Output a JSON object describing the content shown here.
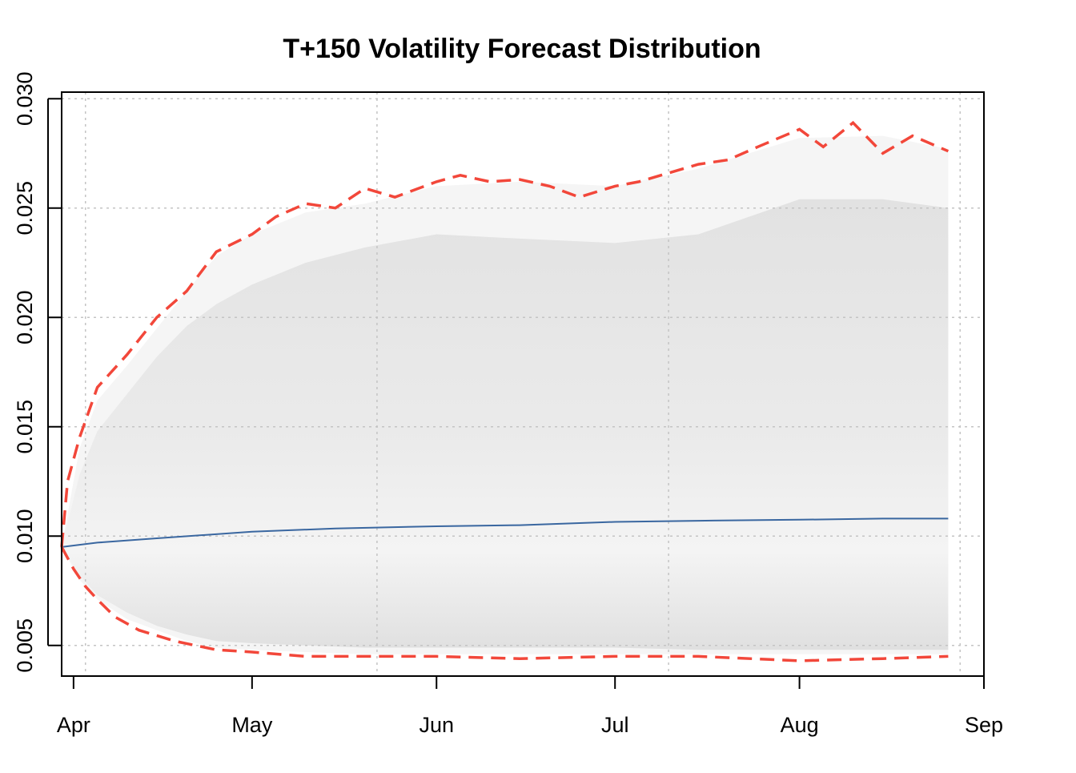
{
  "chart_data": {
    "type": "area",
    "title": "T+150 Volatility Forecast Distribution",
    "xlabel": "",
    "ylabel": "",
    "x_axis": {
      "ticks": [
        "Apr",
        "May",
        "Jun",
        "Jul",
        "Aug",
        "Sep"
      ],
      "tick_dates": [
        "2000-04-01",
        "2000-05-01",
        "2000-06-01",
        "2000-07-01",
        "2000-08-01",
        "2000-09-01"
      ],
      "grid_dates": [
        "2000-04-03",
        "2000-05-22",
        "2000-07-10",
        "2000-08-28"
      ],
      "range": [
        "2000-03-30",
        "2000-09-01"
      ]
    },
    "y_axis": {
      "ticks": [
        "0.005",
        "0.010",
        "0.015",
        "0.020",
        "0.025",
        "0.030"
      ],
      "tick_values": [
        0.005,
        0.01,
        0.015,
        0.02,
        0.025,
        0.03
      ],
      "range": [
        0.0036,
        0.0303
      ]
    },
    "grid": true,
    "series": [
      {
        "kind": "line",
        "color": "#3a67a0",
        "x": [
          "2000-03-30",
          "2000-04-05",
          "2000-04-15",
          "2000-05-01",
          "2000-05-15",
          "2000-06-01",
          "2000-06-15",
          "2000-07-01",
          "2000-07-15",
          "2000-08-01",
          "2000-08-15",
          "2000-08-26"
        ],
        "values": [
          0.0095,
          0.0097,
          0.0099,
          0.0102,
          0.01035,
          0.01045,
          0.0105,
          0.01065,
          0.0107,
          0.01075,
          0.0108,
          0.0108
        ]
      },
      {
        "kind": "dashed-line",
        "color": "#f2473a",
        "x": [
          "2000-03-30",
          "2000-03-31",
          "2000-04-02",
          "2000-04-05",
          "2000-04-10",
          "2000-04-15",
          "2000-04-20",
          "2000-04-25",
          "2000-05-01",
          "2000-05-05",
          "2000-05-10",
          "2000-05-15",
          "2000-05-20",
          "2000-05-25",
          "2000-06-01",
          "2000-06-05",
          "2000-06-10",
          "2000-06-15",
          "2000-06-20",
          "2000-06-25",
          "2000-07-01",
          "2000-07-05",
          "2000-07-10",
          "2000-07-15",
          "2000-07-20",
          "2000-07-25",
          "2000-08-01",
          "2000-08-05",
          "2000-08-10",
          "2000-08-15",
          "2000-08-20",
          "2000-08-26"
        ],
        "values": [
          0.0095,
          0.0125,
          0.0145,
          0.0168,
          0.0183,
          0.02,
          0.0212,
          0.023,
          0.0238,
          0.0246,
          0.0252,
          0.025,
          0.0259,
          0.0255,
          0.0262,
          0.0265,
          0.0262,
          0.0263,
          0.026,
          0.0255,
          0.026,
          0.0262,
          0.0266,
          0.027,
          0.0272,
          0.0278,
          0.0286,
          0.0278,
          0.0289,
          0.0275,
          0.0283,
          0.0276
        ]
      },
      {
        "kind": "dashed-line",
        "color": "#f2473a",
        "x": [
          "2000-03-30",
          "2000-04-01",
          "2000-04-03",
          "2000-04-05",
          "2000-04-08",
          "2000-04-12",
          "2000-04-18",
          "2000-04-25",
          "2000-05-01",
          "2000-05-10",
          "2000-05-20",
          "2000-06-01",
          "2000-06-15",
          "2000-07-01",
          "2000-07-15",
          "2000-08-01",
          "2000-08-15",
          "2000-08-26"
        ],
        "values": [
          0.0095,
          0.0085,
          0.0077,
          0.0071,
          0.0063,
          0.0057,
          0.0052,
          0.0048,
          0.0047,
          0.0045,
          0.0045,
          0.0045,
          0.0044,
          0.0045,
          0.0045,
          0.0043,
          0.0044,
          0.0045
        ]
      }
    ],
    "bands": [
      {
        "kind": "band",
        "color": "#f5f5f5",
        "x": [
          "2000-03-30",
          "2000-04-02",
          "2000-04-05",
          "2000-04-10",
          "2000-04-15",
          "2000-04-20",
          "2000-04-25",
          "2000-05-01",
          "2000-05-10",
          "2000-05-20",
          "2000-06-01",
          "2000-06-15",
          "2000-07-01",
          "2000-07-15",
          "2000-08-01",
          "2000-08-15",
          "2000-08-26"
        ],
        "upper": [
          0.0095,
          0.014,
          0.0162,
          0.0178,
          0.0195,
          0.0212,
          0.0228,
          0.0238,
          0.0248,
          0.0252,
          0.026,
          0.0262,
          0.026,
          0.0268,
          0.0282,
          0.0283,
          0.0277
        ],
        "lower": [
          0.0095,
          0.008,
          0.0071,
          0.0062,
          0.0057,
          0.0052,
          0.0049,
          0.0048,
          0.0047,
          0.0046,
          0.0046,
          0.0046,
          0.0046,
          0.0046,
          0.0046,
          0.0046,
          0.0046
        ]
      },
      {
        "kind": "band",
        "color": "#e6e6e6",
        "x": [
          "2000-03-30",
          "2000-04-02",
          "2000-04-05",
          "2000-04-10",
          "2000-04-15",
          "2000-04-20",
          "2000-04-25",
          "2000-05-01",
          "2000-05-10",
          "2000-05-20",
          "2000-06-01",
          "2000-06-15",
          "2000-07-01",
          "2000-07-15",
          "2000-08-01",
          "2000-08-15",
          "2000-08-26"
        ],
        "upper": [
          0.0095,
          0.0128,
          0.0148,
          0.0165,
          0.0182,
          0.0196,
          0.0206,
          0.0215,
          0.0225,
          0.0232,
          0.0238,
          0.0236,
          0.0234,
          0.0238,
          0.0254,
          0.0254,
          0.025
        ],
        "lower": [
          0.0095,
          0.0082,
          0.0073,
          0.0065,
          0.0059,
          0.0055,
          0.0052,
          0.0051,
          0.005,
          0.0049,
          0.0049,
          0.0049,
          0.0049,
          0.0048,
          0.0048,
          0.0048,
          0.0048
        ]
      }
    ]
  }
}
